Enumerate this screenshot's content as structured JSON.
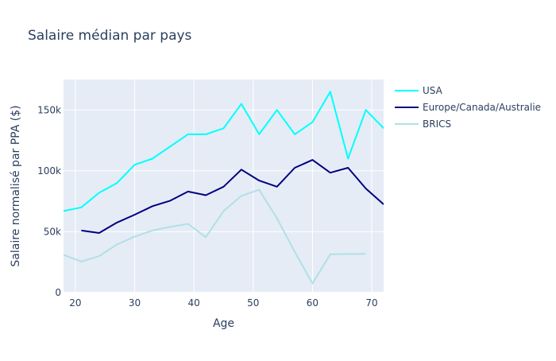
{
  "chart_data": {
    "type": "line",
    "title": "Salaire médian par pays",
    "xlabel": "Age",
    "ylabel": "Salaire normalisé par PPA ($)",
    "xlim": [
      18,
      72
    ],
    "ylim": [
      0,
      175000
    ],
    "x_ticks": [
      20,
      30,
      40,
      50,
      60,
      70
    ],
    "y_ticks": [
      0,
      50000,
      100000,
      150000
    ],
    "y_tick_labels": [
      "0",
      "50k",
      "100k",
      "150k"
    ],
    "grid": true,
    "legend_position": "top-right",
    "plot_background": "#e5ecf6",
    "series": [
      {
        "name": "USA",
        "color": "#00ffff",
        "x": [
          18,
          21,
          24,
          27,
          30,
          33,
          36,
          39,
          42,
          45,
          48,
          51,
          54,
          57,
          60,
          63,
          66,
          69,
          72
        ],
        "y": [
          67000,
          70000,
          82000,
          90000,
          105000,
          110000,
          120000,
          130000,
          130000,
          135000,
          155000,
          130000,
          150000,
          130000,
          140000,
          165000,
          110000,
          150000,
          135000
        ]
      },
      {
        "name": "Europe/Canada/Australie",
        "color": "#000080",
        "x": [
          21,
          24,
          27,
          30,
          33,
          36,
          39,
          42,
          45,
          48,
          51,
          54,
          57,
          60,
          63,
          66,
          69,
          72
        ],
        "y": [
          51000,
          49000,
          57500,
          64000,
          71000,
          75500,
          83000,
          80000,
          87000,
          101000,
          92000,
          87000,
          102500,
          109000,
          98500,
          102500,
          85500,
          72500
        ]
      },
      {
        "name": "BRICS",
        "color": "#b0e0e6",
        "x": [
          18,
          21,
          24,
          27,
          30,
          33,
          36,
          39,
          42,
          45,
          48,
          51,
          54,
          57,
          60,
          63,
          66,
          69
        ],
        "y": [
          31000,
          25500,
          30000,
          39500,
          46000,
          51000,
          54000,
          56500,
          45500,
          67000,
          79500,
          84500,
          61000,
          33500,
          7500,
          31500,
          31700,
          31800
        ]
      }
    ]
  }
}
